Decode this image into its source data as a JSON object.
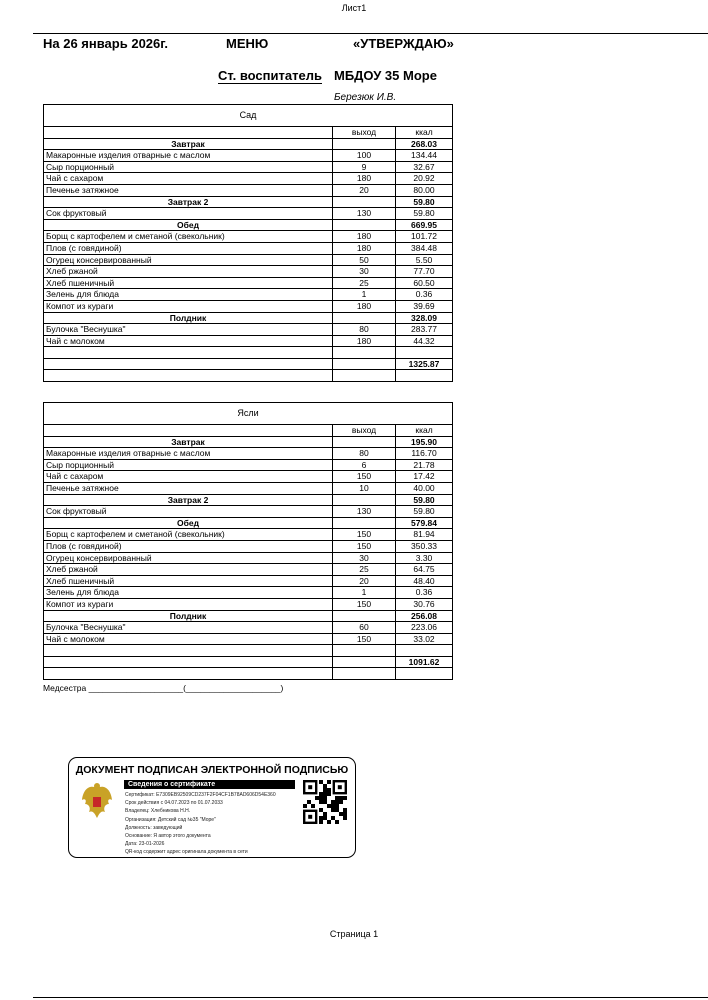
{
  "sheet_name": "Лист1",
  "header": {
    "date": "На 26 январь 2026г.",
    "title": "МЕНЮ",
    "approve": "«УТВЕРЖДАЮ»",
    "position": "Ст. воспитатель",
    "org": "МБДОУ 35 Море",
    "signer": "Березюк И.В."
  },
  "columns": {
    "output": "выход",
    "kcal": "ккал"
  },
  "tables": [
    {
      "title": "Сад",
      "rows": [
        {
          "type": "section",
          "name": "Завтрак",
          "kcal": "268.03"
        },
        {
          "name": "Макаронные изделия отварные с маслом",
          "out": "100",
          "kcal": "134.44"
        },
        {
          "name": "Сыр  порционный",
          "out": "9",
          "kcal": "32.67"
        },
        {
          "name": "Чай с сахаром",
          "out": "180",
          "kcal": "20.92"
        },
        {
          "name": "Печенье затяжное",
          "out": "20",
          "kcal": "80.00"
        },
        {
          "type": "section",
          "name": "Завтрак 2",
          "kcal": "59.80"
        },
        {
          "name": "Сок фруктовый",
          "out": "130",
          "kcal": "59.80"
        },
        {
          "type": "section",
          "name": "Обед",
          "kcal": "669.95"
        },
        {
          "name": "Борщ с картофелем и сметаной (свекольник)",
          "out": "180",
          "kcal": "101.72"
        },
        {
          "name": "Плов (с говядиной)",
          "out": "180",
          "kcal": "384.48"
        },
        {
          "name": "Огурец консервированный",
          "out": "50",
          "kcal": "5.50"
        },
        {
          "name": "Хлеб ржаной",
          "out": "30",
          "kcal": "77.70"
        },
        {
          "name": "Хлеб пшеничный",
          "out": "25",
          "kcal": "60.50"
        },
        {
          "name": "Зелень для блюда",
          "out": "1",
          "kcal": "0.36"
        },
        {
          "name": "Компот из кураги",
          "out": "180",
          "kcal": "39.69"
        },
        {
          "type": "section",
          "name": "Полдник",
          "kcal": "328.09"
        },
        {
          "name": "Булочка \"Веснушка\"",
          "out": "80",
          "kcal": "283.77"
        },
        {
          "name": "Чай с молоком",
          "out": "180",
          "kcal": "44.32"
        },
        {
          "type": "empty"
        },
        {
          "type": "total",
          "kcal": "1325.87"
        },
        {
          "type": "empty"
        }
      ]
    },
    {
      "title": "Ясли",
      "rows": [
        {
          "type": "section",
          "name": "Завтрак",
          "kcal": "195.90"
        },
        {
          "name": "Макаронные изделия отварные с маслом",
          "out": "80",
          "kcal": "116.70"
        },
        {
          "name": "Сыр  порционный",
          "out": "6",
          "kcal": "21.78"
        },
        {
          "name": "Чай с сахаром",
          "out": "150",
          "kcal": "17.42"
        },
        {
          "name": "Печенье затяжное",
          "out": "10",
          "kcal": "40.00"
        },
        {
          "type": "section",
          "name": "Завтрак 2",
          "kcal": "59.80"
        },
        {
          "name": "Сок фруктовый",
          "out": "130",
          "kcal": "59.80"
        },
        {
          "type": "section",
          "name": "Обед",
          "kcal": "579.84"
        },
        {
          "name": "Борщ с картофелем и сметаной (свекольник)",
          "out": "150",
          "kcal": "81.94"
        },
        {
          "name": "Плов (с говядиной)",
          "out": "150",
          "kcal": "350.33"
        },
        {
          "name": "Огурец консервированный",
          "out": "30",
          "kcal": "3.30"
        },
        {
          "name": "Хлеб ржаной",
          "out": "25",
          "kcal": "64.75"
        },
        {
          "name": "Хлеб пшеничный",
          "out": "20",
          "kcal": "48.40"
        },
        {
          "name": "Зелень для блюда",
          "out": "1",
          "kcal": "0.36"
        },
        {
          "name": "Компот из кураги",
          "out": "150",
          "kcal": "30.76"
        },
        {
          "type": "section",
          "name": "Полдник",
          "kcal": "256.08"
        },
        {
          "name": "Булочка \"Веснушка\"",
          "out": "60",
          "kcal": "223.06"
        },
        {
          "name": "Чай с молоком",
          "out": "150",
          "kcal": "33.02"
        },
        {
          "type": "empty"
        },
        {
          "type": "total",
          "kcal": "1091.62"
        },
        {
          "type": "empty"
        }
      ]
    }
  ],
  "nurse": "Медсестра ____________________(____________________)",
  "signature": {
    "title": "ДОКУМЕНТ ПОДПИСАН ЭЛЕКТРОННОЙ ПОДПИСЬЮ",
    "subtitle": "Сведения о сертификате",
    "lines": [
      "Сертификат: E7309EB92509CD237F2F04CF1B78AD606D54E360",
      "Срок действия с 04.07.2023 по 01.07.2033",
      "Владелец: Хлебникова Н.Н.",
      "Организация: Детский сад №35 \"Море\"",
      "Должность: заведующий",
      "Основание: Я автор этого документа",
      "Дата: 23-01-2026",
      "QR-код содержит адрес оригинала документа в сети"
    ]
  },
  "footer": {
    "page": "Страница 1"
  }
}
